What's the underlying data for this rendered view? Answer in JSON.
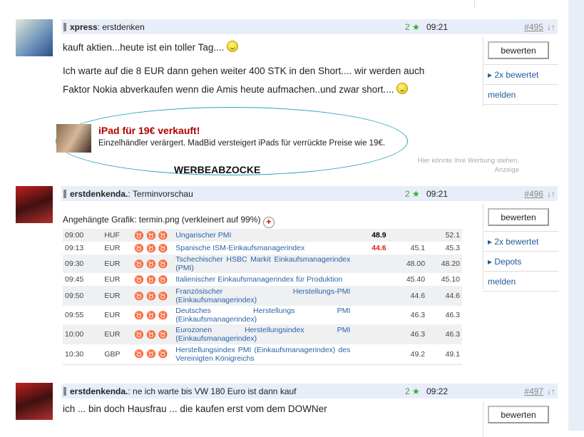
{
  "posts": [
    {
      "author": "xpress",
      "subject": "erstdenken",
      "stars": "2",
      "time": "09:21",
      "number": "#495",
      "arrows": "↓↑",
      "lines": [
        "kauft aktien...heute ist ein toller Tag....",
        "Ich warte auf die 8 EUR dann gehen weiter 400 STK in den Short.... wir werden auch",
        "Faktor Nokia abverkaufen wenn die Amis heute aufmachen..und zwar short...."
      ],
      "button": "bewerten",
      "links": [
        "2x bewertet",
        "melden"
      ]
    },
    {
      "author": "erstdenkenda.",
      "subject": "Terminvorschau",
      "stars": "2",
      "time": "09:21",
      "number": "#496",
      "arrows": "↓↑",
      "attachment": "Angehängte Grafik: termin.png (verkleinert auf 99%)",
      "button": "bewerten",
      "links": [
        "2x bewertet",
        "Depots",
        "melden"
      ]
    },
    {
      "author": "erstdenkenda.",
      "subject": "ne ich warte bis VW 180 Euro ist dann kauf",
      "stars": "2",
      "time": "09:22",
      "number": "#497",
      "arrows": "↓↑",
      "lines": [
        "ich ... bin doch Hausfrau ... die kaufen erst vom dem DOWNer"
      ],
      "button": "bewerten"
    }
  ],
  "ad": {
    "title": "iPad für 19€ verkauft!",
    "text": "Einzelhändler verärgert. MadBid versteigert iPads für verrückte Preise wie 19€.",
    "note": "Hier könnte Ihre Werbung stehen.",
    "label": "Anzeige",
    "stamp": "WERBEABZOCKE"
  },
  "calendar": [
    {
      "time": "09:00",
      "cur": "HUF",
      "imp": 1,
      "event": "Ungarischer PMI",
      "actual": "48.9",
      "actual_color": "#000000",
      "forecast": "",
      "previous": "52.1"
    },
    {
      "time": "09:13",
      "cur": "EUR",
      "imp": 1,
      "event": "Spanische ISM-Einkaufsmanagerindex",
      "actual": "44.6",
      "actual_color": "#e02020",
      "forecast": "45.1",
      "previous": "45.3"
    },
    {
      "time": "09:30",
      "cur": "EUR",
      "imp": 1,
      "event": "Tschechischer HSBC Markit Einkaufsmanagerindex (PMI)",
      "actual": "",
      "forecast": "48.00",
      "previous": "48.20"
    },
    {
      "time": "09:45",
      "cur": "EUR",
      "imp": 2,
      "event": "Italienischer Einkaufsmanagerindex für Produktion",
      "actual": "",
      "forecast": "45.40",
      "previous": "45.10"
    },
    {
      "time": "09:50",
      "cur": "EUR",
      "imp": 2,
      "event": "Französischer Herstellungs-PMI (Einkaufsmanagerindex)",
      "actual": "",
      "forecast": "44.6",
      "previous": "44.6"
    },
    {
      "time": "09:55",
      "cur": "EUR",
      "imp": 2,
      "event": "Deutsches Herstellungs PMI (Einkaufsmanagerindex)",
      "actual": "",
      "forecast": "46.3",
      "previous": "46.3"
    },
    {
      "time": "10:00",
      "cur": "EUR",
      "imp": 2,
      "event": "Eurozonen Herstellungsindex PMI (Einkaufsmanagerindex)",
      "actual": "",
      "forecast": "46.3",
      "previous": "46.3"
    },
    {
      "time": "10:30",
      "cur": "GBP",
      "imp": 2,
      "event": "Herstellungsindex PMI (Einkaufsmanagerindex) des Vereinigten Königreichs",
      "actual": "",
      "forecast": "49.2",
      "previous": "49.1"
    }
  ]
}
